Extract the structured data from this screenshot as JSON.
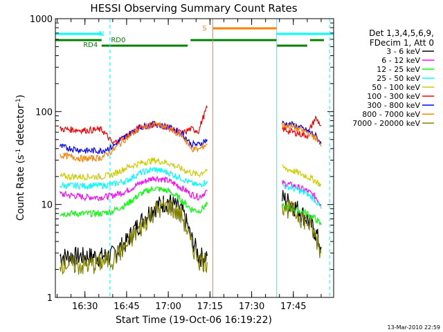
{
  "chart_data": {
    "type": "line",
    "title": "HESSI Observing Summary Count Rates",
    "xlabel": "Start Time (19-Oct-06 16:19:22)",
    "ylabel_main": "Count Rate (s",
    "ylabel_sup1": "-1",
    "ylabel_mid": " detector",
    "ylabel_sup2": "-1",
    "ylabel_end": ")",
    "y_scale": "log",
    "ylim": [
      1,
      1000
    ],
    "xlim": [
      "16:19:22",
      "17:59:30"
    ],
    "x_ticks": [
      "16:30",
      "16:45",
      "17:00",
      "17:15",
      "17:30",
      "17:45"
    ],
    "y_ticks": [
      "1",
      "10",
      "100",
      "1000"
    ],
    "legend_header": [
      "Det 1,3,4,5,6,9,",
      "FDecim 1, Att 0"
    ],
    "legend_placement": "right",
    "footer": "13-Mar-2010 22:59",
    "grid": false,
    "series": [
      {
        "name": "3 - 6 keV",
        "color": "#000000",
        "segments": [
          {
            "x": [
              "16:21",
              "16:30",
              "16:36",
              "16:40",
              "16:45",
              "16:50",
              "16:55",
              "17:00",
              "17:05",
              "17:08",
              "17:11",
              "17:14"
            ],
            "y": [
              2.8,
              2.8,
              2.8,
              2.9,
              4.0,
              6.5,
              9.5,
              11,
              8.5,
              4.5,
              2.8,
              2.8
            ]
          },
          {
            "x": [
              "17:41",
              "17:45",
              "17:50",
              "17:53",
              "17:55"
            ],
            "y": [
              12,
              10,
              7,
              5,
              3.5
            ]
          }
        ]
      },
      {
        "name": "6 - 12 keV",
        "color": "#ff00ff",
        "segments": [
          {
            "x": [
              "16:21",
              "16:30",
              "16:36",
              "16:40",
              "16:45",
              "16:50",
              "16:55",
              "17:00",
              "17:05",
              "17:08",
              "17:11",
              "17:14"
            ],
            "y": [
              13,
              12,
              12,
              12.5,
              14,
              17,
              19.5,
              18,
              15,
              13,
              12,
              14
            ]
          },
          {
            "x": [
              "17:41",
              "17:45",
              "17:50",
              "17:53",
              "17:55"
            ],
            "y": [
              17,
              16,
              14,
              12,
              10
            ]
          }
        ]
      },
      {
        "name": "12 - 25 keV",
        "color": "#00ff00",
        "segments": [
          {
            "x": [
              "16:21",
              "16:30",
              "16:36",
              "16:40",
              "16:45",
              "16:50",
              "16:55",
              "17:00",
              "17:05",
              "17:08",
              "17:11",
              "17:14"
            ],
            "y": [
              8,
              8,
              8,
              8.5,
              10,
              13,
              15,
              14,
              11,
              9,
              8.5,
              10
            ]
          },
          {
            "x": [
              "17:41",
              "17:45",
              "17:50",
              "17:53",
              "17:55"
            ],
            "y": [
              9.5,
              9,
              8,
              7,
              6
            ]
          }
        ]
      },
      {
        "name": "25 - 50 keV",
        "color": "#00ffff",
        "segments": [
          {
            "x": [
              "16:21",
              "16:30",
              "16:36",
              "16:40",
              "16:45",
              "16:50",
              "16:55",
              "17:00",
              "17:05",
              "17:08",
              "17:11",
              "17:14"
            ],
            "y": [
              16,
              16,
              16,
              16.5,
              18,
              22,
              24,
              22,
              19,
              17,
              16,
              18
            ]
          },
          {
            "x": [
              "17:41",
              "17:45",
              "17:50",
              "17:53",
              "17:55"
            ],
            "y": [
              16,
              15,
              13,
              11,
              9
            ]
          }
        ]
      },
      {
        "name": "50 - 100 keV",
        "color": "#cccc00",
        "segments": [
          {
            "x": [
              "16:21",
              "16:30",
              "16:36",
              "16:40",
              "16:45",
              "16:50",
              "16:55",
              "17:00",
              "17:05",
              "17:08",
              "17:11",
              "17:14"
            ],
            "y": [
              20,
              20,
              20,
              21,
              25,
              28,
              30,
              28,
              24,
              22,
              21,
              24
            ]
          },
          {
            "x": [
              "17:41",
              "17:45",
              "17:50",
              "17:53",
              "17:55"
            ],
            "y": [
              25,
              23,
              20,
              18,
              16
            ]
          }
        ]
      },
      {
        "name": "100 - 300 keV",
        "color": "#ff0000",
        "segments": [
          {
            "x": [
              "16:21",
              "16:30",
              "16:36",
              "16:40",
              "16:45",
              "16:50",
              "16:55",
              "17:00",
              "17:05",
              "17:08",
              "17:11",
              "17:14"
            ],
            "y": [
              65,
              63,
              64,
              45,
              55,
              68,
              73,
              68,
              58,
              65,
              62,
              110
            ]
          },
          {
            "x": [
              "17:41",
              "17:45",
              "17:50",
              "17:53",
              "17:55"
            ],
            "y": [
              65,
              60,
              55,
              85,
              70
            ]
          }
        ]
      },
      {
        "name": "300 - 800 keV",
        "color": "#0000ff",
        "segments": [
          {
            "x": [
              "16:21",
              "16:30",
              "16:36",
              "16:40",
              "16:45",
              "16:50",
              "16:55",
              "17:00",
              "17:05",
              "17:08",
              "17:11",
              "17:14"
            ],
            "y": [
              42,
              38,
              38,
              42,
              55,
              68,
              74,
              68,
              58,
              45,
              44,
              50
            ]
          },
          {
            "x": [
              "17:41",
              "17:45",
              "17:50",
              "17:53",
              "17:55"
            ],
            "y": [
              75,
              72,
              62,
              55,
              45
            ]
          }
        ]
      },
      {
        "name": "800 - 7000 keV",
        "color": "#ff8000",
        "segments": [
          {
            "x": [
              "16:21",
              "16:30",
              "16:36",
              "16:40",
              "16:45",
              "16:50",
              "16:55",
              "17:00",
              "17:05",
              "17:08",
              "17:11",
              "17:14"
            ],
            "y": [
              34,
              31,
              32,
              38,
              52,
              66,
              73,
              66,
              55,
              40,
              39,
              45
            ]
          },
          {
            "x": [
              "17:41",
              "17:45",
              "17:50",
              "17:53",
              "17:55"
            ],
            "y": [
              72,
              68,
              60,
              52,
              42
            ]
          }
        ]
      },
      {
        "name": "7000 - 20000 keV",
        "color": "#808000",
        "segments": [
          {
            "x": [
              "16:21",
              "16:30",
              "16:36",
              "16:40",
              "16:45",
              "16:50",
              "16:55",
              "17:00",
              "17:05",
              "17:08",
              "17:11",
              "17:14"
            ],
            "y": [
              2.4,
              2.2,
              2.4,
              2.6,
              3.6,
              5.6,
              8.6,
              9.8,
              7.4,
              3.8,
              2.6,
              2.4
            ]
          },
          {
            "x": [
              "17:41",
              "17:45",
              "17:50",
              "17:53",
              "17:55"
            ],
            "y": [
              10,
              8.5,
              6.5,
              4.5,
              3.0
            ]
          }
        ]
      }
    ],
    "annotations": {
      "N": {
        "label": "N",
        "color": "#00ffff"
      },
      "S": {
        "label": "S",
        "color": "#ff8000"
      },
      "RD0": {
        "label": "RD0",
        "color": "#008000"
      },
      "RD4": {
        "label": "RD4",
        "color": "#008000"
      }
    },
    "state_bars": {
      "night": {
        "color": "#00ffff",
        "x": [
          [
            "16:19:22",
            "16:36"
          ],
          [
            "17:39",
            "17:59:30"
          ]
        ]
      },
      "saa": {
        "color": "#ff8000",
        "x": [
          [
            "17:16",
            "17:39"
          ]
        ]
      },
      "decimation_high": {
        "color": "#008000",
        "x": [
          [
            "16:19:22",
            "16:36"
          ],
          [
            "17:08",
            "17:39"
          ],
          [
            "17:51",
            "17:56"
          ]
        ]
      },
      "decimation_low": {
        "color": "#008000",
        "x": [
          [
            "16:36",
            "17:07"
          ],
          [
            "17:39",
            "17:50"
          ]
        ]
      }
    },
    "vertical_markers": [
      {
        "x": "16:19:22",
        "color": "#00ffff",
        "style": "solid"
      },
      {
        "x": "16:39",
        "color": "#00ffff",
        "style": "dashed"
      },
      {
        "x": "17:16",
        "color": "#ff8000",
        "style": "solid"
      },
      {
        "x": "17:39",
        "color": "#00ffff",
        "style": "solid"
      },
      {
        "x": "17:58",
        "color": "#00ffff",
        "style": "dashed"
      }
    ]
  }
}
